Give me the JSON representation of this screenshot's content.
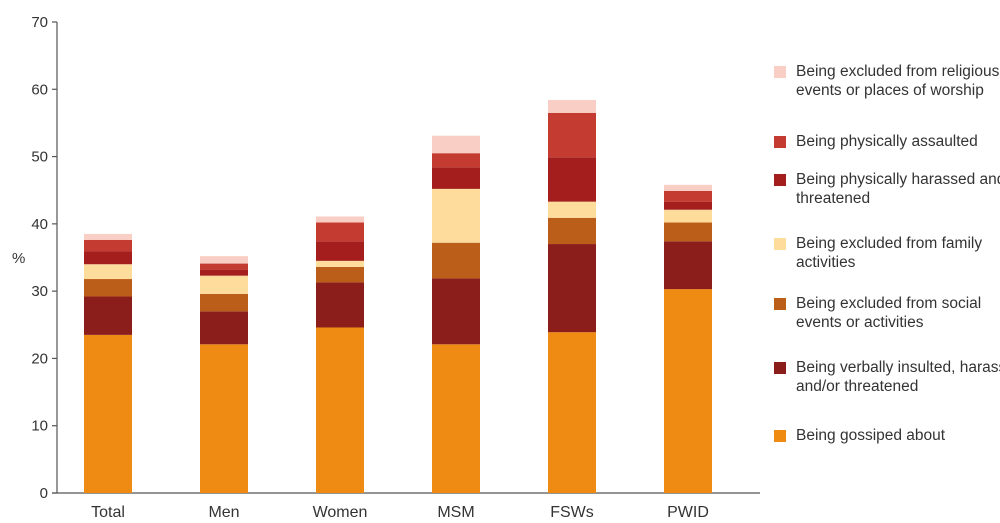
{
  "chart_data": {
    "type": "bar",
    "stacked": true,
    "ylabel": "%",
    "ylim": [
      0,
      70
    ],
    "yticks": [
      0,
      10,
      20,
      30,
      40,
      50,
      60,
      70
    ],
    "grid": false,
    "legend_position": "right",
    "categories": [
      "Total",
      "Men",
      "Women",
      "MSM",
      "FSWs",
      "PWID"
    ],
    "series": [
      {
        "name": "Being gossiped about",
        "color": "#ef8a12",
        "values": [
          23.5,
          22.1,
          24.6,
          22.1,
          23.9,
          30.3
        ]
      },
      {
        "name": "Being verbally insulted, harassed and/or threatened",
        "color": "#8b1d1a",
        "values": [
          5.7,
          4.9,
          6.7,
          9.8,
          13.1,
          7.1
        ]
      },
      {
        "name": "Being excluded from social events or activities",
        "color": "#bb5e1a",
        "values": [
          2.6,
          2.6,
          2.3,
          5.3,
          3.9,
          2.8
        ]
      },
      {
        "name": "Being excluded from family activities",
        "color": "#fddc9c",
        "values": [
          2.2,
          2.7,
          0.9,
          8.0,
          2.4,
          1.9
        ]
      },
      {
        "name": "Being physically harassed and/or threatened",
        "color": "#a51e1e",
        "values": [
          1.9,
          0.9,
          2.9,
          3.2,
          6.6,
          1.2
        ]
      },
      {
        "name": "Being physically assaulted",
        "color": "#c43b32",
        "values": [
          1.7,
          0.9,
          2.8,
          2.1,
          6.6,
          1.6
        ]
      },
      {
        "name": "Being excluded from religious events or places of worship",
        "color": "#f9cec4",
        "values": [
          0.9,
          1.1,
          0.9,
          2.6,
          1.9,
          0.9
        ]
      }
    ]
  }
}
